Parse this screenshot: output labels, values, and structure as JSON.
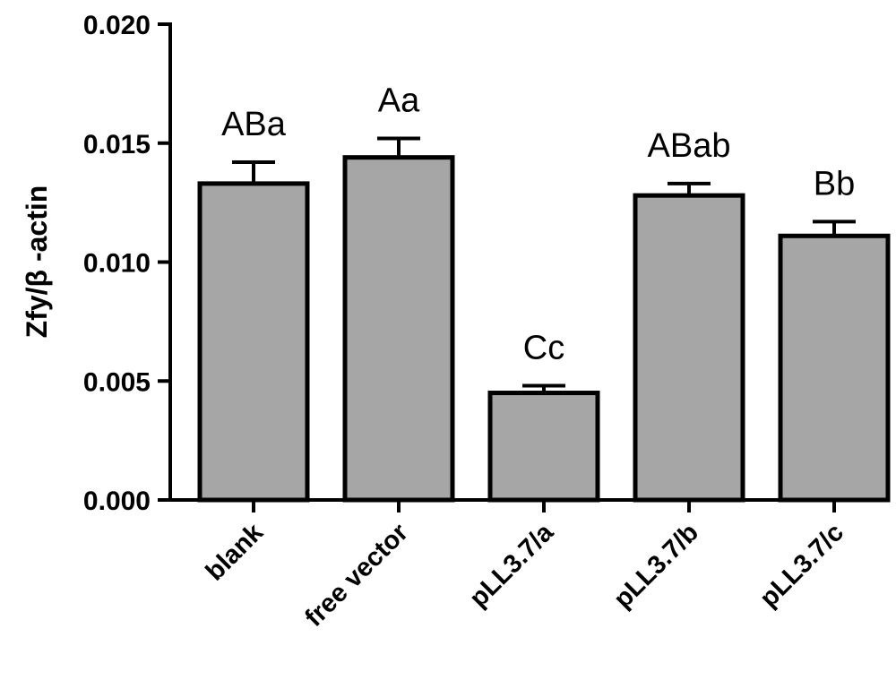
{
  "chart_data": {
    "type": "bar",
    "categories": [
      "blank",
      "free vector",
      "pLL3.7/a",
      "pLL3.7/b",
      "pLL3.7/c"
    ],
    "values": [
      0.0133,
      0.0144,
      0.0045,
      0.0128,
      0.0111
    ],
    "errors": [
      0.0009,
      0.0008,
      0.0003,
      0.0005,
      0.0006
    ],
    "significance_labels": [
      "ABa",
      "Aa",
      "Cc",
      "ABab",
      "Bb"
    ],
    "ylabel": "Zfy/β -actin",
    "xlabel": "",
    "title": "",
    "ylim": [
      0,
      0.02
    ],
    "yticks": [
      "0.000",
      "0.005",
      "0.010",
      "0.015",
      "0.020"
    ],
    "grid": false,
    "bar_color": "#a6a6a6"
  }
}
